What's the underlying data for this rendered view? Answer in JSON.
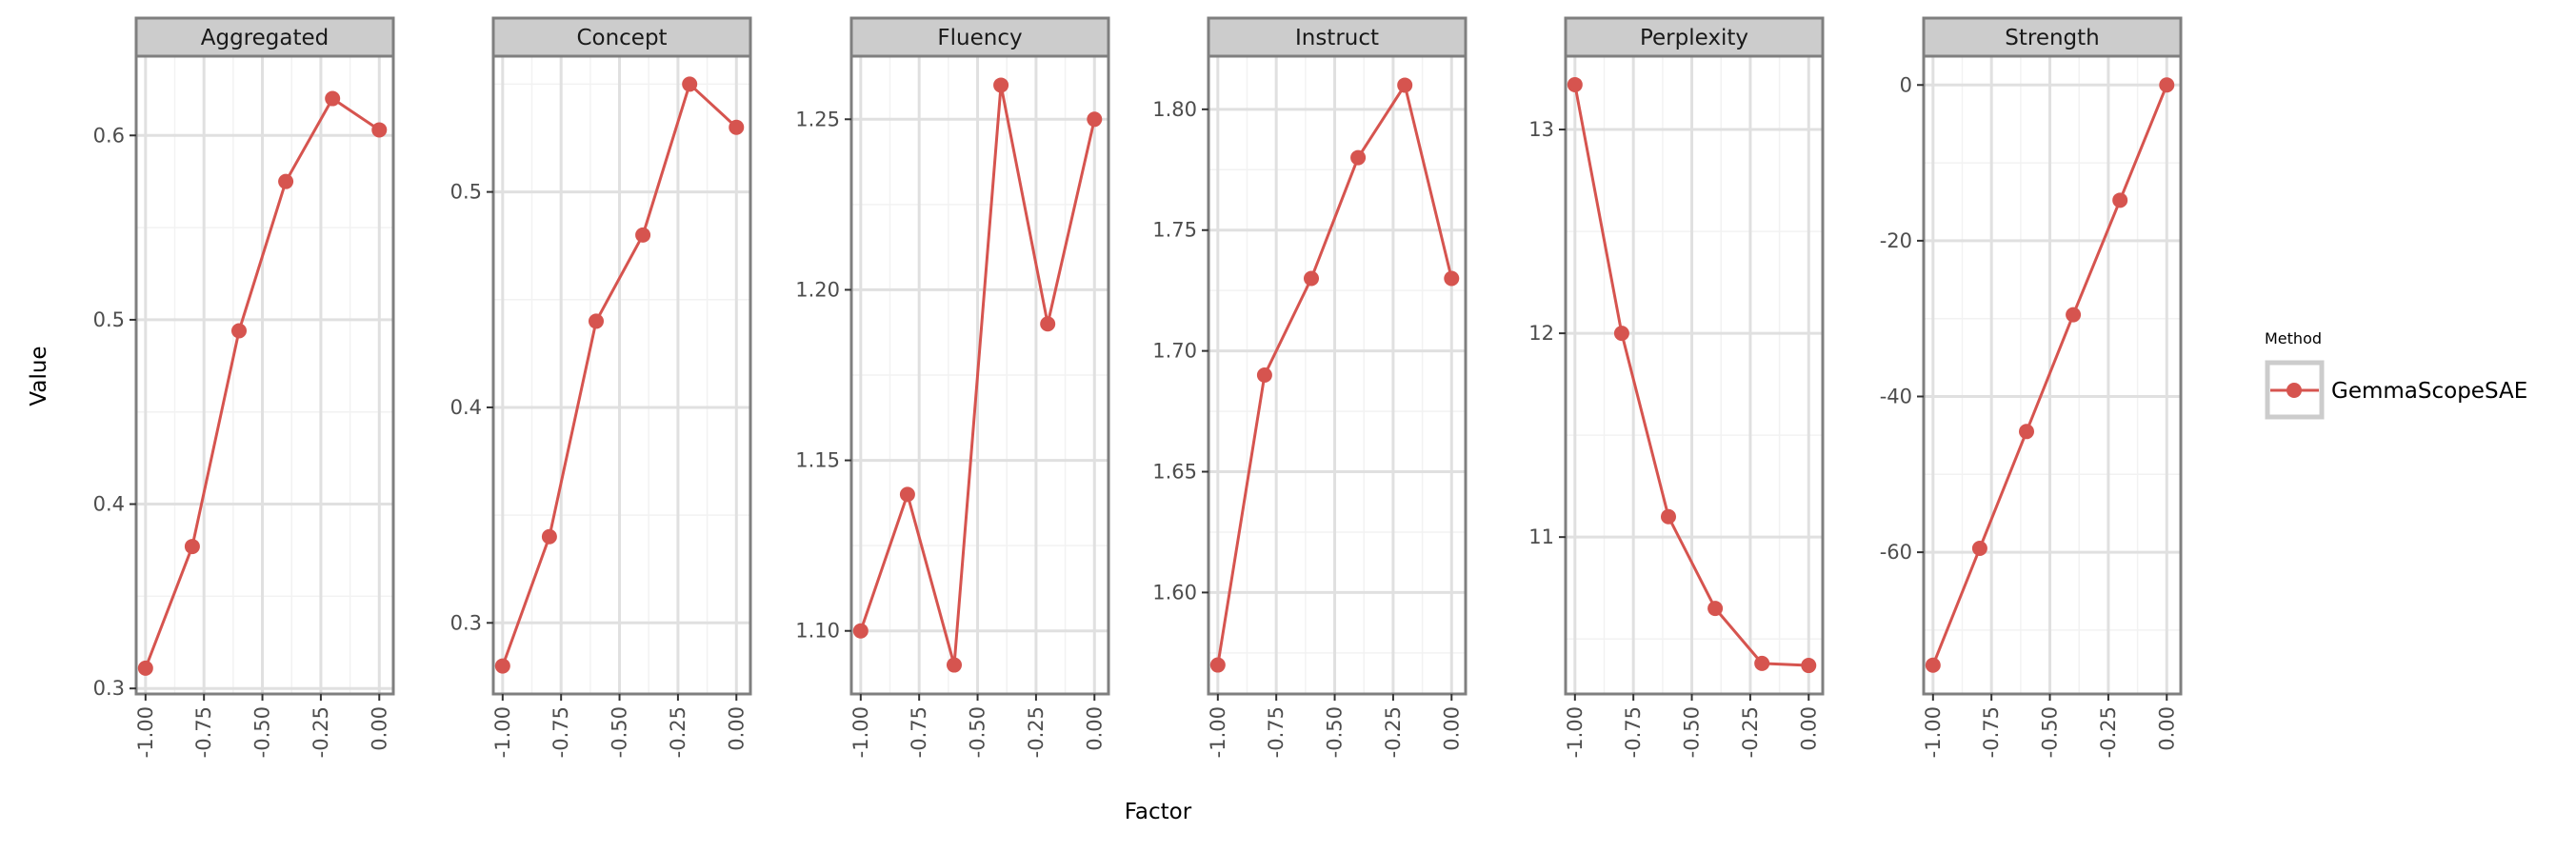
{
  "chart_data": {
    "type": "line",
    "xlabel": "Factor",
    "ylabel": "Value",
    "legend": {
      "title": "Method",
      "placement": "right",
      "entries": [
        "GemmaScopeSAE"
      ]
    },
    "colors": {
      "series": "#d6544f",
      "strip_bg": "#cccccc",
      "strip_border": "#7f7f7f",
      "grid_major": "#e0e0e0",
      "grid_minor": "#f2f2f2"
    },
    "x": [
      -1.0,
      -0.8,
      -0.6,
      -0.4,
      -0.2,
      0.0
    ],
    "x_ticks": [
      -1.0,
      -0.75,
      -0.5,
      -0.25,
      0.0
    ],
    "x_tick_labels": [
      "-1.00",
      "-0.75",
      "-0.50",
      "-0.25",
      "0.00"
    ],
    "grid": true,
    "panels": [
      {
        "title": "Aggregated",
        "series": [
          {
            "name": "GemmaScopeSAE",
            "values": [
              0.311,
              0.377,
              0.494,
              0.575,
              0.62,
              0.603
            ]
          }
        ],
        "ylim": [
          0.297,
          0.643
        ],
        "y_ticks": [
          0.3,
          0.4,
          0.5,
          0.6
        ],
        "y_tick_labels": [
          "0.3",
          "0.4",
          "0.5",
          "0.6"
        ]
      },
      {
        "title": "Concept",
        "series": [
          {
            "name": "GemmaScopeSAE",
            "values": [
              0.28,
              0.34,
              0.44,
              0.48,
              0.55,
              0.53
            ]
          }
        ],
        "ylim": [
          0.267,
          0.563
        ],
        "y_ticks": [
          0.3,
          0.4,
          0.5
        ],
        "y_tick_labels": [
          "0.3",
          "0.4",
          "0.5"
        ]
      },
      {
        "title": "Fluency",
        "series": [
          {
            "name": "GemmaScopeSAE",
            "values": [
              1.1,
              1.14,
              1.09,
              1.26,
              1.19,
              1.25
            ]
          }
        ],
        "ylim": [
          1.0815,
          1.2685
        ],
        "y_ticks": [
          1.1,
          1.15,
          1.2,
          1.25
        ],
        "y_tick_labels": [
          "1.10",
          "1.15",
          "1.20",
          "1.25"
        ]
      },
      {
        "title": "Instruct",
        "series": [
          {
            "name": "GemmaScopeSAE",
            "values": [
              1.57,
              1.69,
              1.73,
              1.78,
              1.81,
              1.73
            ]
          }
        ],
        "ylim": [
          1.558,
          1.822
        ],
        "y_ticks": [
          1.6,
          1.65,
          1.7,
          1.75,
          1.8
        ],
        "y_tick_labels": [
          "1.60",
          "1.65",
          "1.70",
          "1.75",
          "1.80"
        ]
      },
      {
        "title": "Perplexity",
        "series": [
          {
            "name": "GemmaScopeSAE",
            "values": [
              13.22,
              12.0,
              11.1,
              10.65,
              10.38,
              10.37
            ]
          }
        ],
        "ylim": [
          10.23,
          13.36
        ],
        "y_ticks": [
          11,
          12,
          13
        ],
        "y_tick_labels": [
          "11",
          "12",
          "13"
        ]
      },
      {
        "title": "Strength",
        "series": [
          {
            "name": "GemmaScopeSAE",
            "values": [
              -74.5,
              -59.5,
              -44.5,
              -29.5,
              -14.8,
              0.0
            ]
          }
        ],
        "ylim": [
          -78.2,
          3.7
        ],
        "y_ticks": [
          -60,
          -40,
          -20,
          0
        ],
        "y_tick_labels": [
          "-60",
          "-40",
          "-20",
          "0"
        ]
      }
    ]
  }
}
